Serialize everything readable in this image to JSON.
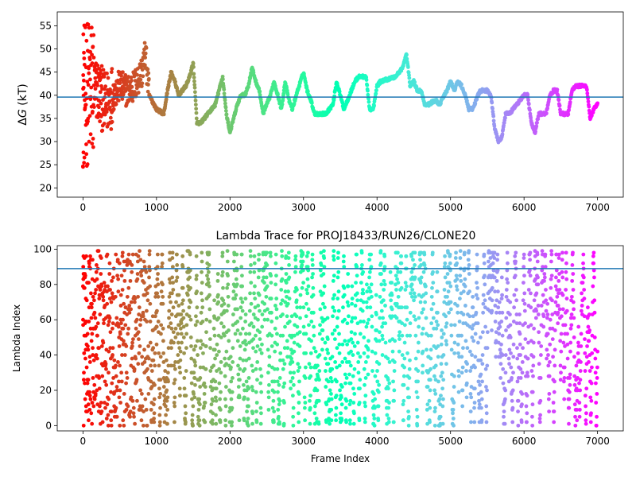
{
  "chart_data": [
    {
      "type": "scatter",
      "title": "",
      "xlabel": "",
      "ylabel": "ΔG (kT)",
      "ylabel_italic_part": "G",
      "xlim": [
        -350,
        7350
      ],
      "ylim": [
        18,
        58
      ],
      "xticks": [
        0,
        1000,
        2000,
        3000,
        4000,
        5000,
        6000,
        7000
      ],
      "yticks": [
        20,
        25,
        30,
        35,
        40,
        45,
        50,
        55
      ],
      "hline": 39.6,
      "hline_color": "#1f77b4",
      "colormap": "rainbow (reversed: red at frame 0 → violet at last frame)",
      "series_trace": [
        [
          0,
          40
        ],
        [
          100,
          41
        ],
        [
          200,
          41
        ],
        [
          300,
          38
        ],
        [
          400,
          40
        ],
        [
          500,
          42
        ],
        [
          600,
          41
        ],
        [
          700,
          42
        ],
        [
          800,
          45
        ],
        [
          850,
          49
        ],
        [
          900,
          40
        ],
        [
          1000,
          37
        ],
        [
          1100,
          36
        ],
        [
          1150,
          41
        ],
        [
          1200,
          45
        ],
        [
          1250,
          43
        ],
        [
          1300,
          40
        ],
        [
          1350,
          41
        ],
        [
          1400,
          42
        ],
        [
          1450,
          44
        ],
        [
          1500,
          47
        ],
        [
          1550,
          34
        ],
        [
          1600,
          34
        ],
        [
          1700,
          36
        ],
        [
          1800,
          38
        ],
        [
          1850,
          41
        ],
        [
          1900,
          44
        ],
        [
          1950,
          36
        ],
        [
          2000,
          32
        ],
        [
          2050,
          35
        ],
        [
          2100,
          38
        ],
        [
          2150,
          40
        ],
        [
          2200,
          40
        ],
        [
          2250,
          42
        ],
        [
          2300,
          46
        ],
        [
          2350,
          43
        ],
        [
          2400,
          41
        ],
        [
          2450,
          36
        ],
        [
          2500,
          38
        ],
        [
          2550,
          40
        ],
        [
          2600,
          43
        ],
        [
          2650,
          40
        ],
        [
          2700,
          37
        ],
        [
          2750,
          43
        ],
        [
          2800,
          39
        ],
        [
          2850,
          37
        ],
        [
          2900,
          40
        ],
        [
          3000,
          45
        ],
        [
          3050,
          41
        ],
        [
          3100,
          39
        ],
        [
          3150,
          36
        ],
        [
          3200,
          36
        ],
        [
          3300,
          36
        ],
        [
          3400,
          38
        ],
        [
          3450,
          43
        ],
        [
          3500,
          40
        ],
        [
          3550,
          37
        ],
        [
          3600,
          39
        ],
        [
          3700,
          43
        ],
        [
          3750,
          44
        ],
        [
          3850,
          44
        ],
        [
          3900,
          37
        ],
        [
          3950,
          37
        ],
        [
          4000,
          42
        ],
        [
          4050,
          43
        ],
        [
          4250,
          44
        ],
        [
          4350,
          46
        ],
        [
          4400,
          49
        ],
        [
          4450,
          42
        ],
        [
          4500,
          43
        ],
        [
          4550,
          41
        ],
        [
          4600,
          41
        ],
        [
          4650,
          38
        ],
        [
          4700,
          38
        ],
        [
          4800,
          39
        ],
        [
          4850,
          38
        ],
        [
          4950,
          41
        ],
        [
          5000,
          43
        ],
        [
          5050,
          41
        ],
        [
          5100,
          43
        ],
        [
          5150,
          42
        ],
        [
          5200,
          40
        ],
        [
          5250,
          37
        ],
        [
          5300,
          37
        ],
        [
          5350,
          39
        ],
        [
          5400,
          41
        ],
        [
          5500,
          41
        ],
        [
          5550,
          40
        ],
        [
          5600,
          33
        ],
        [
          5650,
          30
        ],
        [
          5700,
          31
        ],
        [
          5750,
          36
        ],
        [
          5800,
          36
        ],
        [
          5850,
          37
        ],
        [
          5900,
          38
        ],
        [
          5950,
          39
        ],
        [
          6000,
          40
        ],
        [
          6050,
          40
        ],
        [
          6100,
          34
        ],
        [
          6150,
          32
        ],
        [
          6200,
          36
        ],
        [
          6300,
          36
        ],
        [
          6350,
          40
        ],
        [
          6400,
          41
        ],
        [
          6450,
          41
        ],
        [
          6500,
          36
        ],
        [
          6550,
          36
        ],
        [
          6600,
          36
        ],
        [
          6650,
          41
        ],
        [
          6700,
          42
        ],
        [
          6850,
          42
        ],
        [
          6900,
          35
        ],
        [
          6950,
          37
        ],
        [
          7000,
          38
        ]
      ]
    },
    {
      "type": "scatter",
      "title": "Lambda Trace for PROJ18433/RUN26/CLONE20",
      "xlabel": "Frame Index",
      "ylabel": "Lambda Index",
      "xlim": [
        -350,
        7350
      ],
      "ylim": [
        -3,
        102
      ],
      "xticks": [
        0,
        1000,
        2000,
        3000,
        4000,
        5000,
        6000,
        7000
      ],
      "yticks": [
        0,
        20,
        40,
        60,
        80,
        100
      ],
      "hline": 89,
      "hline_color": "#1f77b4",
      "y_range_values": [
        0,
        99
      ],
      "point_count": 2600
    }
  ]
}
